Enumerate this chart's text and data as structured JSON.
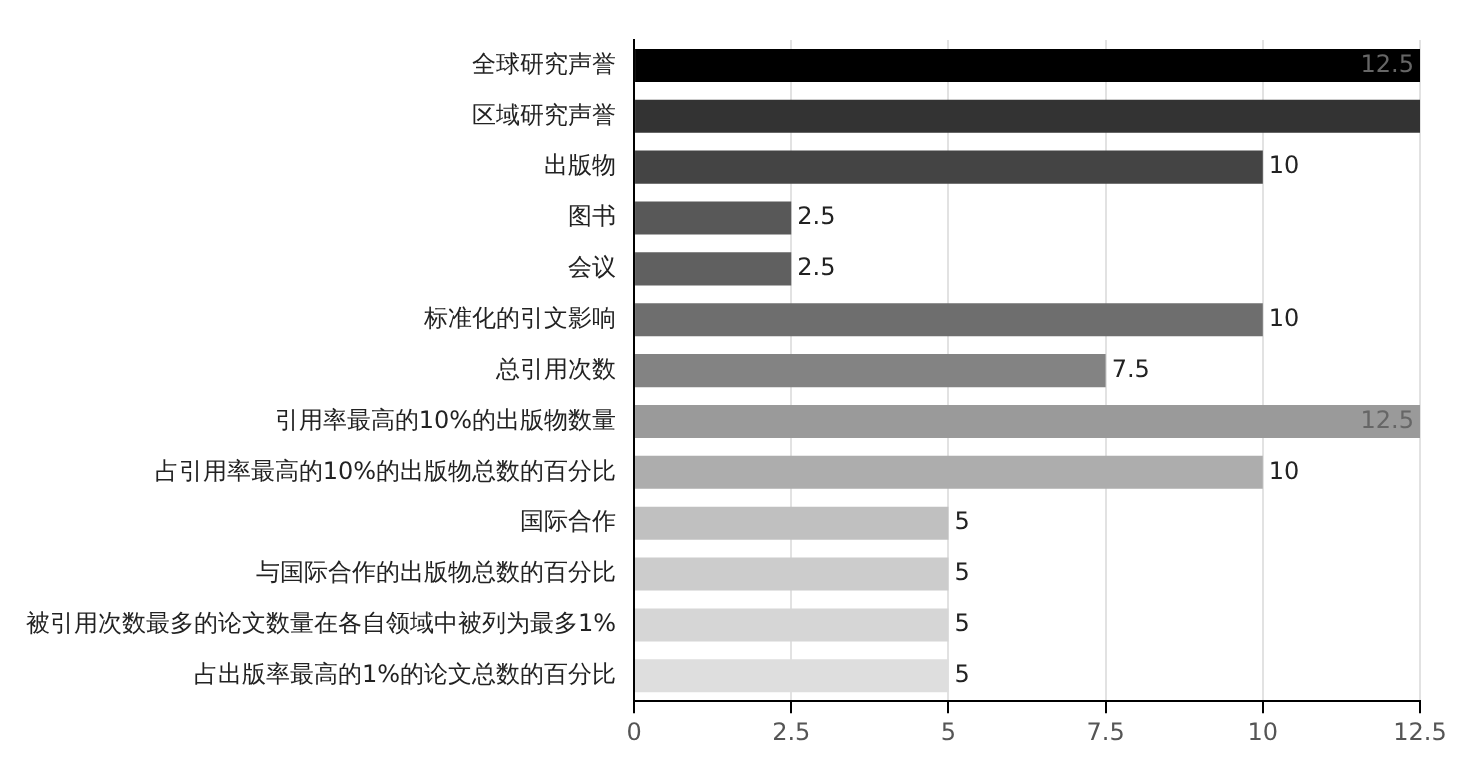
{
  "chart_data": {
    "type": "bar",
    "orientation": "horizontal",
    "categories": [
      "全球研究声誉",
      "区域研究声誉",
      "出版物",
      "图书",
      "会议",
      "标准化的引文影响",
      "总引用次数",
      "引用率最高的10%的出版物数量",
      "占引用率最高的10%的出版物总数的百分比",
      "国际合作",
      "与国际合作的出版物总数的百分比",
      "被引用次数最多的论文数量在各自领域中被列为最多1%",
      "占出版率最高的1%的论文总数的百分比"
    ],
    "values": [
      12.5,
      12.5,
      10,
      2.5,
      2.5,
      10,
      7.5,
      12.5,
      10,
      5,
      5,
      5,
      5
    ],
    "colors": [
      "#000000",
      "#333333",
      "#444444",
      "#585858",
      "#606060",
      "#6e6e6e",
      "#838383",
      "#9a9a9a",
      "#adadad",
      "#c0c0c0",
      "#cccccc",
      "#d6d6d6",
      "#dedede"
    ],
    "value_labels": [
      "12.5",
      null,
      "10",
      "2.5",
      "2.5",
      "10",
      "7.5",
      "12.5",
      "10",
      "5",
      "5",
      "5",
      "5"
    ],
    "xlim": [
      0,
      12.5
    ],
    "xticks": [
      0,
      2.5,
      5,
      7.5,
      10,
      12.5
    ],
    "grid": "x",
    "legend": false
  }
}
